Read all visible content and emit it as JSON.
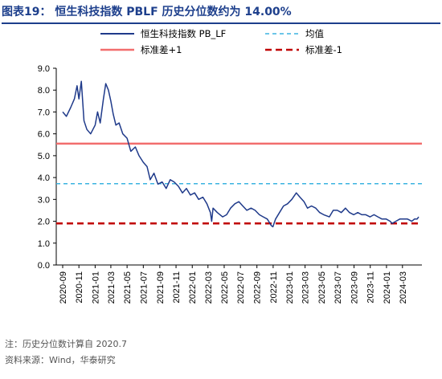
{
  "header": {
    "title": "图表19：  恒生科技指数 PBLF 历史分位数约为 14.00%"
  },
  "footer": {
    "note": "注：历史分位数计算自 2020.7",
    "source": "资料来源：Wind，华泰研究"
  },
  "chart_data": {
    "type": "line",
    "ylim": [
      0,
      9
    ],
    "yticks": [
      "0.0",
      "1.0",
      "2.0",
      "3.0",
      "4.0",
      "5.0",
      "6.0",
      "7.0",
      "8.0",
      "9.0"
    ],
    "xticks": [
      "2020-09",
      "2020-11",
      "2021-01",
      "2021-03",
      "2021-05",
      "2021-07",
      "2021-09",
      "2021-11",
      "2022-01",
      "2022-03",
      "2022-05",
      "2022-07",
      "2022-09",
      "2022-11",
      "2023-01",
      "2023-03",
      "2023-05",
      "2023-07",
      "2023-09",
      "2023-11",
      "2024-01",
      "2024-03"
    ],
    "xrange": [
      "2020-09-01",
      "2024-05-01"
    ],
    "grid": false,
    "legend_position": "top",
    "series": [
      {
        "name": "恒生科技指数 PB_LF",
        "color": "#1f3a8a",
        "points": [
          [
            "2020-09-01",
            7.0
          ],
          [
            "2020-09-15",
            6.8
          ],
          [
            "2020-10-01",
            7.2
          ],
          [
            "2020-10-15",
            7.6
          ],
          [
            "2020-10-25",
            8.2
          ],
          [
            "2020-11-01",
            7.6
          ],
          [
            "2020-11-10",
            8.4
          ],
          [
            "2020-11-20",
            6.6
          ],
          [
            "2020-12-01",
            6.2
          ],
          [
            "2020-12-15",
            6.0
          ],
          [
            "2021-01-01",
            6.4
          ],
          [
            "2021-01-10",
            7.0
          ],
          [
            "2021-01-20",
            6.5
          ],
          [
            "2021-02-01",
            7.6
          ],
          [
            "2021-02-10",
            8.3
          ],
          [
            "2021-02-20",
            8.0
          ],
          [
            "2021-03-01",
            7.5
          ],
          [
            "2021-03-10",
            6.9
          ],
          [
            "2021-03-20",
            6.4
          ],
          [
            "2021-04-01",
            6.5
          ],
          [
            "2021-04-15",
            6.0
          ],
          [
            "2021-05-01",
            5.8
          ],
          [
            "2021-05-15",
            5.2
          ],
          [
            "2021-06-01",
            5.4
          ],
          [
            "2021-06-15",
            5.0
          ],
          [
            "2021-07-01",
            4.7
          ],
          [
            "2021-07-15",
            4.5
          ],
          [
            "2021-07-27",
            3.9
          ],
          [
            "2021-08-10",
            4.2
          ],
          [
            "2021-08-25",
            3.7
          ],
          [
            "2021-09-10",
            3.8
          ],
          [
            "2021-09-25",
            3.5
          ],
          [
            "2021-10-10",
            3.9
          ],
          [
            "2021-10-25",
            3.8
          ],
          [
            "2021-11-10",
            3.6
          ],
          [
            "2021-11-25",
            3.3
          ],
          [
            "2021-12-10",
            3.5
          ],
          [
            "2021-12-25",
            3.2
          ],
          [
            "2022-01-10",
            3.3
          ],
          [
            "2022-01-25",
            3.0
          ],
          [
            "2022-02-10",
            3.1
          ],
          [
            "2022-02-25",
            2.8
          ],
          [
            "2022-03-10",
            2.4
          ],
          [
            "2022-03-15",
            2.0
          ],
          [
            "2022-03-20",
            2.6
          ],
          [
            "2022-04-05",
            2.4
          ],
          [
            "2022-04-25",
            2.2
          ],
          [
            "2022-05-10",
            2.3
          ],
          [
            "2022-05-25",
            2.6
          ],
          [
            "2022-06-10",
            2.8
          ],
          [
            "2022-06-25",
            2.9
          ],
          [
            "2022-07-10",
            2.7
          ],
          [
            "2022-07-25",
            2.5
          ],
          [
            "2022-08-10",
            2.6
          ],
          [
            "2022-08-25",
            2.5
          ],
          [
            "2022-09-10",
            2.3
          ],
          [
            "2022-09-25",
            2.2
          ],
          [
            "2022-10-10",
            2.1
          ],
          [
            "2022-10-25",
            1.8
          ],
          [
            "2022-10-31",
            1.75
          ],
          [
            "2022-11-10",
            2.1
          ],
          [
            "2022-11-25",
            2.4
          ],
          [
            "2022-12-10",
            2.7
          ],
          [
            "2022-12-25",
            2.8
          ],
          [
            "2023-01-10",
            3.0
          ],
          [
            "2023-01-27",
            3.3
          ],
          [
            "2023-02-10",
            3.1
          ],
          [
            "2023-02-25",
            2.9
          ],
          [
            "2023-03-10",
            2.6
          ],
          [
            "2023-03-25",
            2.7
          ],
          [
            "2023-04-10",
            2.6
          ],
          [
            "2023-04-25",
            2.4
          ],
          [
            "2023-05-10",
            2.3
          ],
          [
            "2023-05-31",
            2.2
          ],
          [
            "2023-06-15",
            2.5
          ],
          [
            "2023-06-30",
            2.5
          ],
          [
            "2023-07-15",
            2.4
          ],
          [
            "2023-07-31",
            2.6
          ],
          [
            "2023-08-15",
            2.4
          ],
          [
            "2023-08-31",
            2.3
          ],
          [
            "2023-09-15",
            2.4
          ],
          [
            "2023-09-30",
            2.3
          ],
          [
            "2023-10-15",
            2.3
          ],
          [
            "2023-10-31",
            2.2
          ],
          [
            "2023-11-15",
            2.3
          ],
          [
            "2023-11-30",
            2.2
          ],
          [
            "2023-12-15",
            2.1
          ],
          [
            "2023-12-31",
            2.1
          ],
          [
            "2024-01-15",
            2.0
          ],
          [
            "2024-01-22",
            1.9
          ],
          [
            "2024-02-05",
            2.0
          ],
          [
            "2024-02-20",
            2.1
          ],
          [
            "2024-03-05",
            2.1
          ],
          [
            "2024-03-20",
            2.1
          ],
          [
            "2024-04-05",
            2.0
          ],
          [
            "2024-04-15",
            2.1
          ],
          [
            "2024-04-25",
            2.1
          ],
          [
            "2024-05-01",
            2.2
          ]
        ]
      },
      {
        "name": "均值",
        "color": "#3bb3e0",
        "value": 3.72,
        "style": "dashed"
      },
      {
        "name": "标准差+1",
        "color": "#f26d6d",
        "value": 5.55,
        "style": "solid"
      },
      {
        "name": "标准差-1",
        "color": "#c00000",
        "value": 1.9,
        "style": "dashed"
      }
    ]
  }
}
